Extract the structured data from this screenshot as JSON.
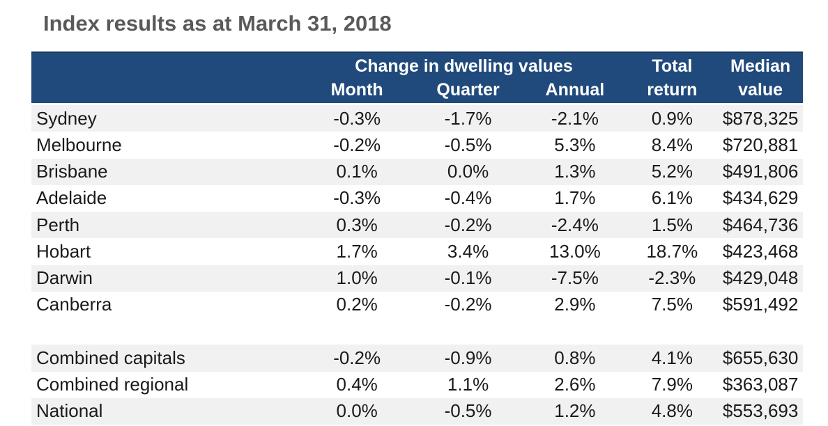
{
  "title": "Index results as at March 31, 2018",
  "colors": {
    "header_bg": "#214a7c",
    "header_top_edge": "#16365c",
    "header_text": "#ffffff",
    "alt_row_bg": "#f1f1f1",
    "row_bg": "#ffffff",
    "title_text": "#595959",
    "body_text": "#1a1a1a"
  },
  "chart_data": {
    "type": "table",
    "title": "Index results as at March 31, 2018",
    "header": {
      "group_label": "Change in dwelling values",
      "change_columns": [
        "Month",
        "Quarter",
        "Annual"
      ],
      "total_return": [
        "Total",
        "return"
      ],
      "median_value": [
        "Median",
        "value"
      ]
    },
    "capital_city_rows": [
      [
        "Sydney",
        "-0.3%",
        "-1.7%",
        "-2.1%",
        "0.9%",
        "$878,325"
      ],
      [
        "Melbourne",
        "-0.2%",
        "-0.5%",
        "5.3%",
        "8.4%",
        "$720,881"
      ],
      [
        "Brisbane",
        "0.1%",
        "0.0%",
        "1.3%",
        "5.2%",
        "$491,806"
      ],
      [
        "Adelaide",
        "-0.3%",
        "-0.4%",
        "1.7%",
        "6.1%",
        "$434,629"
      ],
      [
        "Perth",
        "0.3%",
        "-0.2%",
        "-2.4%",
        "1.5%",
        "$464,736"
      ],
      [
        "Hobart",
        "1.7%",
        "3.4%",
        "13.0%",
        "18.7%",
        "$423,468"
      ],
      [
        "Darwin",
        "1.0%",
        "-0.1%",
        "-7.5%",
        "-2.3%",
        "$429,048"
      ],
      [
        "Canberra",
        "0.2%",
        "-0.2%",
        "2.9%",
        "7.5%",
        "$591,492"
      ]
    ],
    "aggregate_rows": [
      [
        "Combined capitals",
        "-0.2%",
        "-0.9%",
        "0.8%",
        "4.1%",
        "$655,630"
      ],
      [
        "Combined regional",
        "0.4%",
        "1.1%",
        "2.6%",
        "7.9%",
        "$363,087"
      ],
      [
        "National",
        "0.0%",
        "-0.5%",
        "1.2%",
        "4.8%",
        "$553,693"
      ]
    ]
  }
}
